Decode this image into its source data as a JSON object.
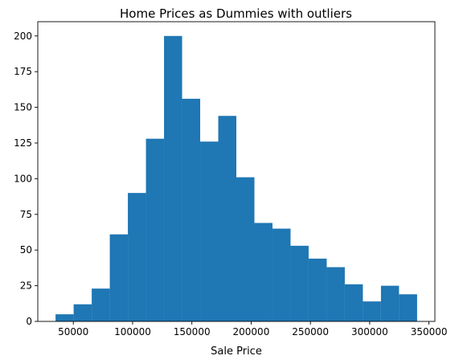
{
  "chart_data": {
    "type": "bar",
    "title": "Home Prices as Dummies with outliers",
    "xlabel": "Sale Price",
    "ylabel": "",
    "xlim": [
      20000,
      355000
    ],
    "ylim": [
      0,
      210
    ],
    "grid": false,
    "bar_color": "#1f77b4",
    "bin_edges": [
      35000,
      50250,
      65500,
      80750,
      96000,
      111250,
      126500,
      141750,
      157000,
      172250,
      187500,
      202750,
      218000,
      233250,
      248500,
      263750,
      279000,
      294250,
      309500,
      324750,
      340000
    ],
    "values": [
      5,
      12,
      23,
      61,
      90,
      128,
      200,
      156,
      126,
      144,
      101,
      69,
      65,
      53,
      44,
      38,
      26,
      14,
      25,
      19
    ],
    "xticks": [
      50000,
      100000,
      150000,
      200000,
      250000,
      300000,
      350000
    ],
    "yticks": [
      0,
      25,
      50,
      75,
      100,
      125,
      150,
      175,
      200
    ]
  }
}
